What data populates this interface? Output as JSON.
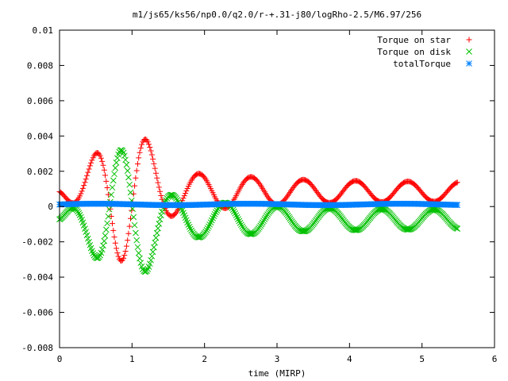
{
  "chart_data": {
    "type": "scatter",
    "title": "m1/js65/ks56/np0.0/q2.0/r-+.31-j80/logRho-2.5/M6.97/256",
    "xlabel": "time (MIRP)",
    "ylabel": "",
    "xlim": [
      0,
      6
    ],
    "ylim": [
      -0.008,
      0.01
    ],
    "x_ticks": [
      "0",
      "1",
      "2",
      "3",
      "4",
      "5",
      "6"
    ],
    "y_ticks": [
      "-0.008",
      "-0.006",
      "-0.004",
      "-0.002",
      "0",
      "0.002",
      "0.004",
      "0.006",
      "0.008",
      "0.01"
    ],
    "grid": false,
    "legend_position": "top-right",
    "series": [
      {
        "name": "Torque on star",
        "color": "#ff0000",
        "marker": "plus",
        "model": {
          "offset": 0.00085,
          "damped": [
            0.0003,
            0.42,
            0.0005,
            0.00755,
            0.01,
            1.5,
            0.18
          ]
        }
      },
      {
        "name": "Torque on disk",
        "color": "#00c000",
        "marker": "cross",
        "model": {
          "offset": -0.00073,
          "damped": [
            0.0003,
            0.42,
            0.0005,
            0.00755,
            0.01,
            1.5,
            0.18
          ]
        }
      },
      {
        "name": "totalTorque",
        "color": "#0080ff",
        "marker": "star",
        "model": {
          "offset": 0.00012,
          "damped": [
            0,
            0,
            0,
            0,
            0,
            0,
            0
          ]
        }
      }
    ],
    "x_range": [
      0,
      5.5
    ],
    "point_spacing": 0.014
  }
}
